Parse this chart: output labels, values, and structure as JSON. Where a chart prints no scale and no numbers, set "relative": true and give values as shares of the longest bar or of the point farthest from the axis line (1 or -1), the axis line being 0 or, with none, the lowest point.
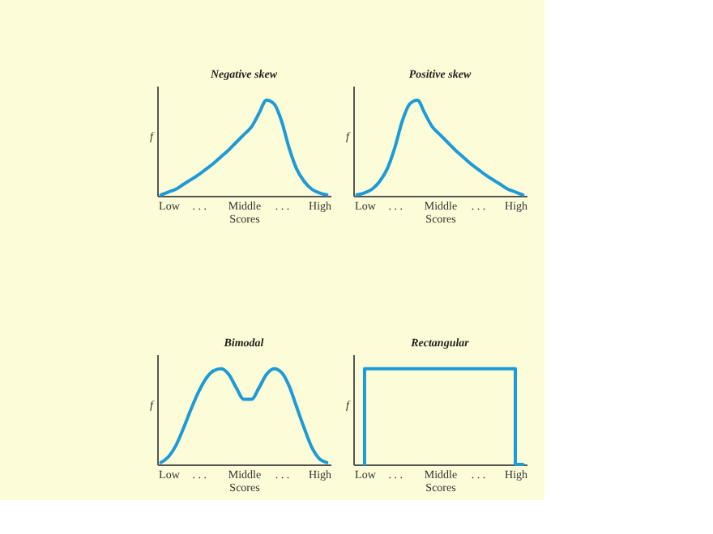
{
  "chart_data": [
    {
      "type": "line",
      "title": "Negative skew",
      "xlabel": "Scores",
      "ylabel": "f",
      "relative": true,
      "line_style": "solid",
      "marker": "none",
      "categories": [
        null,
        "Low",
        null,
        null,
        null,
        ". . .",
        null,
        null,
        null,
        null,
        null,
        "Middle",
        null,
        null,
        null,
        null,
        ". . .",
        null,
        null,
        null,
        null,
        "High",
        null
      ],
      "series": [
        {
          "color": "#1e9bd7",
          "values": [
            0.01,
            0.04,
            0.07,
            0.12,
            0.17,
            0.22,
            0.28,
            0.34,
            0.41,
            0.48,
            0.56,
            0.64,
            0.72,
            0.86,
            1.0,
            0.96,
            0.78,
            0.5,
            0.28,
            0.15,
            0.07,
            0.03,
            0.01
          ]
        }
      ]
    },
    {
      "type": "line",
      "title": "Positive skew",
      "xlabel": "Scores",
      "ylabel": "f",
      "relative": true,
      "line_style": "solid",
      "marker": "none",
      "categories": [
        null,
        "Low",
        null,
        null,
        null,
        ". . .",
        null,
        null,
        null,
        null,
        null,
        "Middle",
        null,
        null,
        null,
        null,
        ". . .",
        null,
        null,
        null,
        null,
        "High",
        null
      ],
      "series": [
        {
          "color": "#1e9bd7",
          "values": [
            0.01,
            0.03,
            0.07,
            0.15,
            0.28,
            0.5,
            0.78,
            0.96,
            1.0,
            0.86,
            0.72,
            0.64,
            0.56,
            0.48,
            0.41,
            0.34,
            0.28,
            0.22,
            0.17,
            0.12,
            0.07,
            0.04,
            0.01
          ]
        }
      ]
    },
    {
      "type": "line",
      "title": "Bimodal",
      "xlabel": "Scores",
      "ylabel": "f",
      "relative": true,
      "line_style": "solid",
      "marker": "none",
      "categories": [
        null,
        "Low",
        null,
        null,
        null,
        ". . .",
        null,
        null,
        null,
        null,
        null,
        "Middle",
        null,
        null,
        null,
        null,
        ". . .",
        null,
        null,
        null,
        null,
        "High",
        null
      ],
      "series": [
        {
          "color": "#1e9bd7",
          "values": [
            0.02,
            0.08,
            0.2,
            0.38,
            0.58,
            0.76,
            0.9,
            0.98,
            1.0,
            0.94,
            0.8,
            0.68,
            0.68,
            0.8,
            0.94,
            1.0,
            0.96,
            0.82,
            0.6,
            0.38,
            0.18,
            0.06,
            0.02
          ]
        }
      ]
    },
    {
      "type": "step",
      "title": "Rectangular",
      "xlabel": "Scores",
      "ylabel": "f",
      "relative": true,
      "line_style": "solid",
      "marker": "none",
      "categories": [
        null,
        "Low",
        null,
        null,
        null,
        ". . .",
        null,
        null,
        null,
        null,
        null,
        "Middle",
        null,
        null,
        null,
        null,
        ". . .",
        null,
        null,
        null,
        null,
        "High",
        null
      ],
      "series": [
        {
          "color": "#1e9bd7",
          "values": [
            null,
            0,
            1,
            1,
            1,
            1,
            1,
            1,
            1,
            1,
            1,
            1,
            1,
            1,
            1,
            1,
            1,
            1,
            1,
            1,
            1,
            1,
            0
          ]
        }
      ]
    }
  ]
}
